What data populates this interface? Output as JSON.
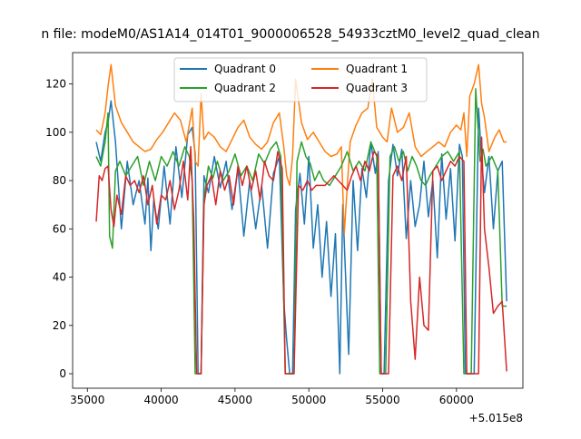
{
  "chart_data": {
    "type": "line",
    "title": "n file: modeM0/AS1A14_014T01_9000006528_54933cztM0_level2_quad_clean",
    "xlabel": "",
    "ylabel": "",
    "offset_text": "+5.015e8",
    "x_offset": 501500000,
    "xlim": [
      34000,
      64500
    ],
    "ylim": [
      -6,
      133
    ],
    "xticks": [
      35000,
      40000,
      45000,
      50000,
      55000,
      60000
    ],
    "xtick_labels": [
      "35000",
      "40000",
      "45000",
      "50000",
      "55000",
      "60000"
    ],
    "yticks": [
      0,
      20,
      40,
      60,
      80,
      100,
      120
    ],
    "ytick_labels": [
      "0",
      "20",
      "40",
      "60",
      "80",
      "100",
      "120"
    ],
    "grid": false,
    "legend": {
      "placement": "upper-center",
      "columns": 2
    },
    "colors": [
      "#1f77b4",
      "#ff7f0e",
      "#2ca02c",
      "#d62728"
    ],
    "series": [
      {
        "name": "Quadrant 0",
        "x": [
          35600,
          35900,
          36200,
          36400,
          36600,
          36900,
          37300,
          37700,
          38100,
          38500,
          38900,
          39100,
          39300,
          39500,
          39800,
          40200,
          40600,
          41000,
          41400,
          41800,
          42100,
          42300,
          42500,
          42700,
          42900,
          43200,
          43600,
          44000,
          44400,
          44800,
          45200,
          45600,
          46000,
          46400,
          46800,
          47200,
          47600,
          48000,
          48300,
          48500,
          48700,
          48900,
          49100,
          49400,
          49700,
          50000,
          50300,
          50600,
          50900,
          51200,
          51500,
          51800,
          52100,
          52300,
          52700,
          53000,
          53300,
          53600,
          53900,
          54200,
          54500,
          54700,
          54900,
          55100,
          55400,
          55700,
          56000,
          56300,
          56600,
          56900,
          57200,
          57500,
          57800,
          58100,
          58400,
          58700,
          59000,
          59300,
          59600,
          59900,
          60200,
          60400,
          60600,
          60900,
          61200,
          61500,
          61700,
          61900,
          62200,
          62500,
          62800,
          63100,
          63400
        ],
        "y": [
          96,
          88,
          100,
          104,
          113,
          96,
          60,
          88,
          70,
          80,
          62,
          81,
          51,
          72,
          60,
          86,
          62,
          94,
          73,
          99,
          102,
          91,
          0,
          0,
          82,
          75,
          90,
          77,
          88,
          68,
          85,
          57,
          80,
          60,
          78,
          52,
          83,
          90,
          30,
          14,
          0,
          0,
          68,
          83,
          62,
          90,
          52,
          70,
          40,
          63,
          32,
          58,
          0,
          70,
          8,
          80,
          51,
          85,
          73,
          96,
          83,
          92,
          0,
          0,
          80,
          95,
          82,
          93,
          56,
          80,
          61,
          70,
          88,
          65,
          80,
          48,
          91,
          64,
          85,
          55,
          95,
          90,
          0,
          0,
          0,
          110,
          88,
          75,
          90,
          60,
          84,
          88,
          30
        ]
      },
      {
        "name": "Quadrant 1",
        "x": [
          35600,
          35900,
          36200,
          36400,
          36600,
          36900,
          37300,
          37700,
          38100,
          38500,
          38900,
          39300,
          39700,
          40100,
          40500,
          40900,
          41300,
          41700,
          42100,
          42300,
          42500,
          42700,
          42900,
          43200,
          43600,
          44000,
          44400,
          44800,
          45200,
          45600,
          46000,
          46400,
          46800,
          47200,
          47600,
          48000,
          48300,
          48500,
          48700,
          48900,
          49100,
          49500,
          49900,
          50300,
          50700,
          51100,
          51500,
          51900,
          52200,
          52400,
          52800,
          53200,
          53600,
          54000,
          54300,
          54600,
          54800,
          55000,
          55300,
          55600,
          56000,
          56400,
          56800,
          57200,
          57600,
          58000,
          58400,
          58800,
          59200,
          59600,
          60000,
          60300,
          60500,
          60700,
          60900,
          61200,
          61500,
          61700,
          61900,
          62200,
          62600,
          62900,
          63200,
          63400
        ],
        "y": [
          101,
          99,
          108,
          119,
          128,
          111,
          104,
          100,
          96,
          94,
          92,
          93,
          97,
          100,
          104,
          108,
          105,
          96,
          110,
          88,
          86,
          116,
          97,
          100,
          98,
          94,
          92,
          97,
          102,
          105,
          98,
          95,
          93,
          96,
          104,
          108,
          94,
          82,
          78,
          90,
          122,
          104,
          97,
          100,
          96,
          92,
          90,
          91,
          94,
          58,
          96,
          103,
          108,
          110,
          122,
          102,
          100,
          98,
          96,
          110,
          100,
          102,
          108,
          94,
          90,
          92,
          94,
          96,
          94,
          100,
          103,
          101,
          108,
          90,
          115,
          120,
          128,
          112,
          106,
          92,
          98,
          101,
          96,
          96
        ]
      },
      {
        "name": "Quadrant 2",
        "x": [
          35600,
          35900,
          36200,
          36400,
          36500,
          36700,
          36900,
          37200,
          37600,
          38000,
          38400,
          38800,
          39200,
          39600,
          40000,
          40400,
          40800,
          41200,
          41600,
          41900,
          42100,
          42300,
          42500,
          42700,
          42900,
          43200,
          43500,
          43800,
          44200,
          44600,
          45000,
          45400,
          45800,
          46200,
          46600,
          47000,
          47400,
          47800,
          48100,
          48400,
          48600,
          48800,
          49000,
          49200,
          49500,
          49800,
          50100,
          50400,
          50700,
          51000,
          51400,
          51800,
          52200,
          52600,
          53000,
          53400,
          53800,
          54200,
          54600,
          54800,
          55000,
          55200,
          55500,
          55800,
          56100,
          56400,
          56700,
          57000,
          57300,
          57600,
          57900,
          58200,
          58600,
          59000,
          59400,
          59800,
          60200,
          60500,
          60700,
          61000,
          61300,
          61600,
          61800,
          62000,
          62400,
          62800,
          63100,
          63400
        ],
        "y": [
          90,
          86,
          96,
          108,
          57,
          52,
          84,
          88,
          82,
          86,
          90,
          78,
          88,
          80,
          90,
          86,
          92,
          86,
          94,
          90,
          80,
          0,
          0,
          0,
          72,
          86,
          81,
          88,
          80,
          84,
          91,
          82,
          86,
          80,
          91,
          87,
          93,
          96,
          90,
          0,
          0,
          0,
          0,
          88,
          96,
          90,
          87,
          80,
          84,
          80,
          78,
          82,
          86,
          92,
          84,
          88,
          84,
          96,
          90,
          0,
          0,
          0,
          90,
          94,
          88,
          92,
          84,
          90,
          86,
          80,
          78,
          82,
          86,
          90,
          92,
          88,
          92,
          0,
          0,
          0,
          118,
          88,
          93,
          86,
          90,
          84,
          28,
          28
        ]
      },
      {
        "name": "Quadrant 3",
        "x": [
          35600,
          35800,
          36000,
          36200,
          36400,
          36600,
          36800,
          37000,
          37300,
          37600,
          37900,
          38200,
          38500,
          38800,
          39100,
          39400,
          39700,
          40000,
          40300,
          40600,
          40900,
          41200,
          41500,
          41800,
          42000,
          42200,
          42400,
          42500,
          42700,
          42900,
          43100,
          43400,
          43700,
          44000,
          44300,
          44600,
          44900,
          45200,
          45500,
          45800,
          46100,
          46400,
          46700,
          47000,
          47300,
          47600,
          47900,
          48200,
          48400,
          48600,
          48800,
          49000,
          49300,
          49600,
          49900,
          50200,
          50500,
          50800,
          51100,
          51400,
          51700,
          52000,
          52300,
          52600,
          52900,
          53200,
          53500,
          53800,
          54100,
          54400,
          54700,
          54900,
          55100,
          55400,
          55700,
          56000,
          56300,
          56600,
          56900,
          57200,
          57500,
          57800,
          58100,
          58400,
          58700,
          59000,
          59300,
          59600,
          59900,
          60200,
          60500,
          60700,
          60900,
          61200,
          61500,
          61700,
          61900,
          62200,
          62500,
          62800,
          63100,
          63400
        ],
        "y": [
          63,
          82,
          80,
          85,
          86,
          68,
          61,
          74,
          66,
          82,
          78,
          80,
          75,
          82,
          70,
          78,
          62,
          74,
          72,
          80,
          68,
          76,
          88,
          72,
          94,
          64,
          0,
          0,
          0,
          70,
          78,
          82,
          70,
          84,
          76,
          82,
          70,
          86,
          78,
          86,
          76,
          84,
          72,
          88,
          82,
          80,
          92,
          85,
          0,
          0,
          0,
          0,
          78,
          76,
          80,
          76,
          78,
          78,
          78,
          80,
          82,
          80,
          78,
          76,
          82,
          86,
          80,
          88,
          84,
          92,
          90,
          0,
          0,
          0,
          82,
          86,
          80,
          90,
          30,
          6,
          40,
          20,
          18,
          84,
          86,
          80,
          84,
          88,
          86,
          90,
          88,
          0,
          0,
          0,
          0,
          98,
          60,
          44,
          25,
          28,
          30,
          1
        ]
      }
    ]
  }
}
